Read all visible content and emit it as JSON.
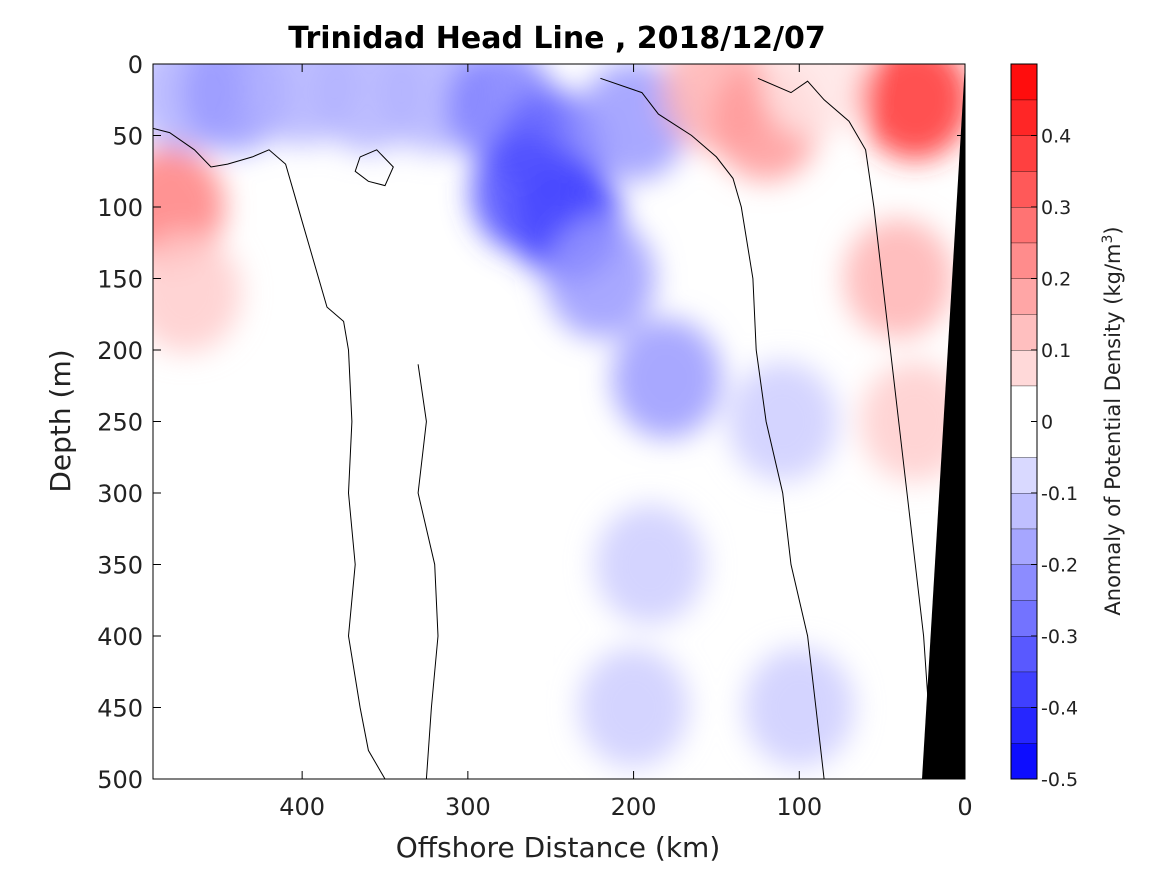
{
  "chart_data": {
    "type": "heatmap",
    "title": "Trinidad Head Line , 2018/12/07",
    "xlabel": "Offshore Distance (km)",
    "ylabel": "Depth (m)",
    "xlim": [
      490,
      0
    ],
    "ylim": [
      0,
      500
    ],
    "x_ticks": [
      "400",
      "300",
      "200",
      "100",
      "0"
    ],
    "x_tick_values": [
      400,
      300,
      200,
      100,
      0
    ],
    "y_ticks": [
      "0",
      "50",
      "100",
      "150",
      "200",
      "250",
      "300",
      "350",
      "400",
      "450",
      "500"
    ],
    "y_tick_values": [
      0,
      50,
      100,
      150,
      200,
      250,
      300,
      350,
      400,
      450,
      500
    ],
    "colorbar": {
      "label": "Anomaly of Potential Density (kg/m",
      "label_sup": "3",
      "label_end": ")",
      "range": [
        -0.5,
        0.5
      ],
      "levels": [
        -0.5,
        -0.45,
        -0.4,
        -0.35,
        -0.3,
        -0.25,
        -0.2,
        -0.15,
        -0.1,
        -0.05,
        0.05,
        0.1,
        0.15,
        0.2,
        0.25,
        0.3,
        0.35,
        0.4,
        0.45,
        0.5
      ],
      "ticks": [
        "0.4",
        "0.3",
        "0.2",
        "0.1",
        "0",
        "-0.1",
        "-0.2",
        "-0.3",
        "-0.4",
        "-0.5"
      ],
      "tick_values": [
        0.4,
        0.3,
        0.2,
        0.1,
        0,
        -0.1,
        -0.2,
        -0.3,
        -0.4,
        -0.5
      ],
      "negative_color": "#0000ff",
      "positive_color": "#ff0000"
    },
    "bathymetry_color": "#000000",
    "contour_level": 0,
    "field_samples": [
      {
        "x": 470,
        "y": 20,
        "value": -0.15
      },
      {
        "x": 440,
        "y": 20,
        "value": -0.2
      },
      {
        "x": 400,
        "y": 15,
        "value": -0.15
      },
      {
        "x": 360,
        "y": 20,
        "value": -0.15
      },
      {
        "x": 320,
        "y": 20,
        "value": -0.15
      },
      {
        "x": 280,
        "y": 30,
        "value": -0.25
      },
      {
        "x": 250,
        "y": 60,
        "value": -0.3
      },
      {
        "x": 240,
        "y": 110,
        "value": -0.4
      },
      {
        "x": 265,
        "y": 90,
        "value": -0.35
      },
      {
        "x": 200,
        "y": 40,
        "value": -0.2
      },
      {
        "x": 220,
        "y": 150,
        "value": -0.2
      },
      {
        "x": 180,
        "y": 220,
        "value": -0.2
      },
      {
        "x": 190,
        "y": 350,
        "value": -0.1
      },
      {
        "x": 200,
        "y": 450,
        "value": -0.1
      },
      {
        "x": 150,
        "y": 20,
        "value": 0.15
      },
      {
        "x": 120,
        "y": 40,
        "value": 0.2
      },
      {
        "x": 90,
        "y": 10,
        "value": 0.05
      },
      {
        "x": 30,
        "y": 25,
        "value": 0.4
      },
      {
        "x": 40,
        "y": 150,
        "value": 0.15
      },
      {
        "x": 30,
        "y": 250,
        "value": 0.1
      },
      {
        "x": 480,
        "y": 100,
        "value": 0.25
      },
      {
        "x": 470,
        "y": 160,
        "value": 0.1
      },
      {
        "x": 110,
        "y": 250,
        "value": -0.1
      },
      {
        "x": 100,
        "y": 450,
        "value": -0.1
      },
      {
        "x": 380,
        "y": 300,
        "value": 0.0
      },
      {
        "x": 300,
        "y": 400,
        "value": 0.0
      }
    ]
  }
}
